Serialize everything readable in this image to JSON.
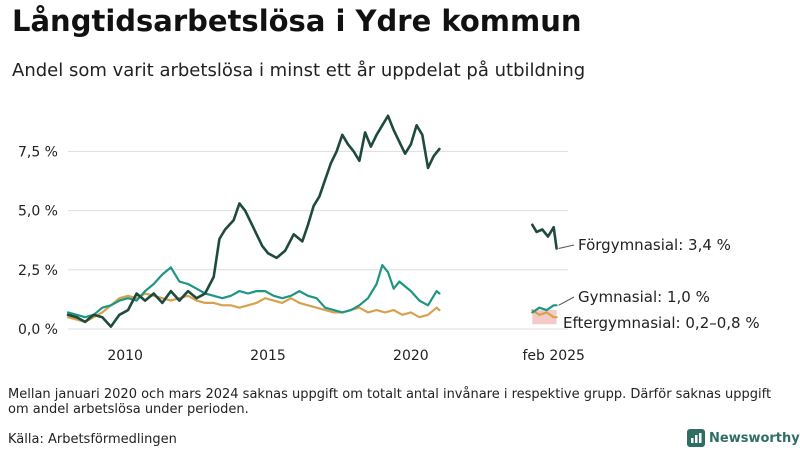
{
  "title": "Långtidsarbetslösa i Ydre kommun",
  "subtitle": "Andel som varit arbetslösa i minst ett år uppdelat på utbildning",
  "note": "Mellan januari 2020 och mars 2024 saknas uppgift om totalt antal invånare i respektive grupp. Därför saknas uppgift om andel arbetslösa under perioden.",
  "source": "Källa: Arbetsförmedlingen",
  "logo_text": "Newsworthy",
  "colors": {
    "forgymnasial": "#1e4a40",
    "gymnasial": "#1f9584",
    "eftergymnasial": "#d6a24e",
    "eftergymnasial_band": "#f3c4c0",
    "grid": "#dddddd"
  },
  "chart_data": {
    "type": "line",
    "title": "Långtidsarbetslösa i Ydre kommun",
    "subtitle": "Andel som varit arbetslösa i minst ett år uppdelat på utbildning",
    "x_unit": "year",
    "xlim": [
      2008.0,
      2025.5
    ],
    "ylim": [
      0,
      9.5
    ],
    "y_ticks": [
      {
        "value": 0,
        "label": "0,0 %"
      },
      {
        "value": 2.5,
        "label": "2,5 %"
      },
      {
        "value": 5,
        "label": "5,0 %"
      },
      {
        "value": 7.5,
        "label": "7,5 %"
      }
    ],
    "x_ticks": [
      {
        "value": 2010,
        "label": "2010"
      },
      {
        "value": 2015,
        "label": "2015"
      },
      {
        "value": 2020,
        "label": "2020"
      },
      {
        "value": 2025,
        "label": "feb 2025"
      }
    ],
    "grid": true,
    "series": [
      {
        "name": "Förgymnasial",
        "end_label": "Förgymnasial: 3,4 %",
        "segments": [
          [
            [
              2008.0,
              0.6
            ],
            [
              2008.3,
              0.5
            ],
            [
              2008.6,
              0.3
            ],
            [
              2008.9,
              0.6
            ],
            [
              2009.2,
              0.5
            ],
            [
              2009.5,
              0.1
            ],
            [
              2009.8,
              0.6
            ],
            [
              2010.1,
              0.8
            ],
            [
              2010.4,
              1.5
            ],
            [
              2010.7,
              1.2
            ],
            [
              2011.0,
              1.5
            ],
            [
              2011.3,
              1.1
            ],
            [
              2011.6,
              1.6
            ],
            [
              2011.9,
              1.2
            ],
            [
              2012.2,
              1.6
            ],
            [
              2012.5,
              1.3
            ],
            [
              2012.8,
              1.5
            ],
            [
              2013.1,
              2.2
            ],
            [
              2013.3,
              3.8
            ],
            [
              2013.5,
              4.2
            ],
            [
              2013.8,
              4.6
            ],
            [
              2014.0,
              5.3
            ],
            [
              2014.2,
              5.0
            ],
            [
              2014.4,
              4.5
            ],
            [
              2014.6,
              4.0
            ],
            [
              2014.8,
              3.5
            ],
            [
              2015.0,
              3.2
            ],
            [
              2015.3,
              3.0
            ],
            [
              2015.6,
              3.3
            ],
            [
              2015.9,
              4.0
            ],
            [
              2016.2,
              3.7
            ],
            [
              2016.4,
              4.4
            ],
            [
              2016.6,
              5.2
            ],
            [
              2016.8,
              5.6
            ],
            [
              2017.0,
              6.3
            ],
            [
              2017.2,
              7.0
            ],
            [
              2017.4,
              7.5
            ],
            [
              2017.6,
              8.2
            ],
            [
              2017.8,
              7.8
            ],
            [
              2018.0,
              7.5
            ],
            [
              2018.2,
              7.1
            ],
            [
              2018.4,
              8.3
            ],
            [
              2018.6,
              7.7
            ],
            [
              2018.8,
              8.2
            ],
            [
              2019.0,
              8.6
            ],
            [
              2019.2,
              9.0
            ],
            [
              2019.4,
              8.4
            ],
            [
              2019.6,
              7.9
            ],
            [
              2019.8,
              7.4
            ],
            [
              2020.0,
              7.8
            ],
            [
              2020.2,
              8.6
            ],
            [
              2020.4,
              8.2
            ],
            [
              2020.6,
              6.8
            ],
            [
              2020.8,
              7.3
            ],
            [
              2021.0,
              7.6
            ]
          ],
          [
            [
              2024.25,
              4.4
            ],
            [
              2024.4,
              4.1
            ],
            [
              2024.6,
              4.2
            ],
            [
              2024.8,
              3.9
            ],
            [
              2025.0,
              4.3
            ],
            [
              2025.1,
              3.4
            ]
          ]
        ]
      },
      {
        "name": "Gymnasial",
        "end_label": "Gymnasial: 1,0 %",
        "segments": [
          [
            [
              2008.0,
              0.7
            ],
            [
              2008.3,
              0.6
            ],
            [
              2008.6,
              0.5
            ],
            [
              2008.9,
              0.6
            ],
            [
              2009.2,
              0.9
            ],
            [
              2009.5,
              1.0
            ],
            [
              2009.8,
              1.2
            ],
            [
              2010.1,
              1.3
            ],
            [
              2010.4,
              1.2
            ],
            [
              2010.7,
              1.6
            ],
            [
              2011.0,
              1.9
            ],
            [
              2011.3,
              2.3
            ],
            [
              2011.6,
              2.6
            ],
            [
              2011.9,
              2.0
            ],
            [
              2012.2,
              1.9
            ],
            [
              2012.5,
              1.7
            ],
            [
              2012.8,
              1.5
            ],
            [
              2013.1,
              1.4
            ],
            [
              2013.4,
              1.3
            ],
            [
              2013.7,
              1.4
            ],
            [
              2014.0,
              1.6
            ],
            [
              2014.3,
              1.5
            ],
            [
              2014.6,
              1.6
            ],
            [
              2014.9,
              1.6
            ],
            [
              2015.2,
              1.4
            ],
            [
              2015.5,
              1.3
            ],
            [
              2015.8,
              1.4
            ],
            [
              2016.1,
              1.6
            ],
            [
              2016.4,
              1.4
            ],
            [
              2016.7,
              1.3
            ],
            [
              2017.0,
              0.9
            ],
            [
              2017.3,
              0.8
            ],
            [
              2017.6,
              0.7
            ],
            [
              2017.9,
              0.8
            ],
            [
              2018.2,
              1.0
            ],
            [
              2018.5,
              1.3
            ],
            [
              2018.8,
              1.9
            ],
            [
              2019.0,
              2.7
            ],
            [
              2019.2,
              2.4
            ],
            [
              2019.4,
              1.7
            ],
            [
              2019.6,
              2.0
            ],
            [
              2019.8,
              1.8
            ],
            [
              2020.0,
              1.6
            ],
            [
              2020.3,
              1.2
            ],
            [
              2020.6,
              1.0
            ],
            [
              2020.9,
              1.6
            ],
            [
              2021.0,
              1.5
            ]
          ],
          [
            [
              2024.25,
              0.7
            ],
            [
              2024.5,
              0.9
            ],
            [
              2024.75,
              0.8
            ],
            [
              2025.0,
              1.0
            ],
            [
              2025.1,
              1.0
            ]
          ]
        ]
      },
      {
        "name": "Eftergymnasial",
        "end_label": "Eftergymnasial: 0,2–0,8 %",
        "segments": [
          [
            [
              2008.0,
              0.5
            ],
            [
              2008.3,
              0.4
            ],
            [
              2008.6,
              0.3
            ],
            [
              2008.9,
              0.5
            ],
            [
              2009.2,
              0.7
            ],
            [
              2009.5,
              1.0
            ],
            [
              2009.8,
              1.3
            ],
            [
              2010.1,
              1.4
            ],
            [
              2010.4,
              1.3
            ],
            [
              2010.7,
              1.5
            ],
            [
              2011.0,
              1.4
            ],
            [
              2011.3,
              1.3
            ],
            [
              2011.6,
              1.2
            ],
            [
              2011.9,
              1.3
            ],
            [
              2012.2,
              1.4
            ],
            [
              2012.5,
              1.2
            ],
            [
              2012.8,
              1.1
            ],
            [
              2013.1,
              1.1
            ],
            [
              2013.4,
              1.0
            ],
            [
              2013.7,
              1.0
            ],
            [
              2014.0,
              0.9
            ],
            [
              2014.3,
              1.0
            ],
            [
              2014.6,
              1.1
            ],
            [
              2014.9,
              1.3
            ],
            [
              2015.2,
              1.2
            ],
            [
              2015.5,
              1.1
            ],
            [
              2015.8,
              1.3
            ],
            [
              2016.1,
              1.1
            ],
            [
              2016.4,
              1.0
            ],
            [
              2016.7,
              0.9
            ],
            [
              2017.0,
              0.8
            ],
            [
              2017.3,
              0.7
            ],
            [
              2017.6,
              0.7
            ],
            [
              2017.9,
              0.8
            ],
            [
              2018.2,
              0.9
            ],
            [
              2018.5,
              0.7
            ],
            [
              2018.8,
              0.8
            ],
            [
              2019.1,
              0.7
            ],
            [
              2019.4,
              0.8
            ],
            [
              2019.7,
              0.6
            ],
            [
              2020.0,
              0.7
            ],
            [
              2020.3,
              0.5
            ],
            [
              2020.6,
              0.6
            ],
            [
              2020.9,
              0.9
            ],
            [
              2021.0,
              0.8
            ]
          ],
          [
            [
              2024.25,
              0.8
            ],
            [
              2024.5,
              0.6
            ],
            [
              2024.75,
              0.7
            ],
            [
              2025.0,
              0.5
            ],
            [
              2025.1,
              0.5
            ]
          ]
        ],
        "range_band": {
          "x": [
            2024.25,
            2025.1
          ],
          "low": 0.2,
          "high": 0.8
        }
      }
    ]
  }
}
